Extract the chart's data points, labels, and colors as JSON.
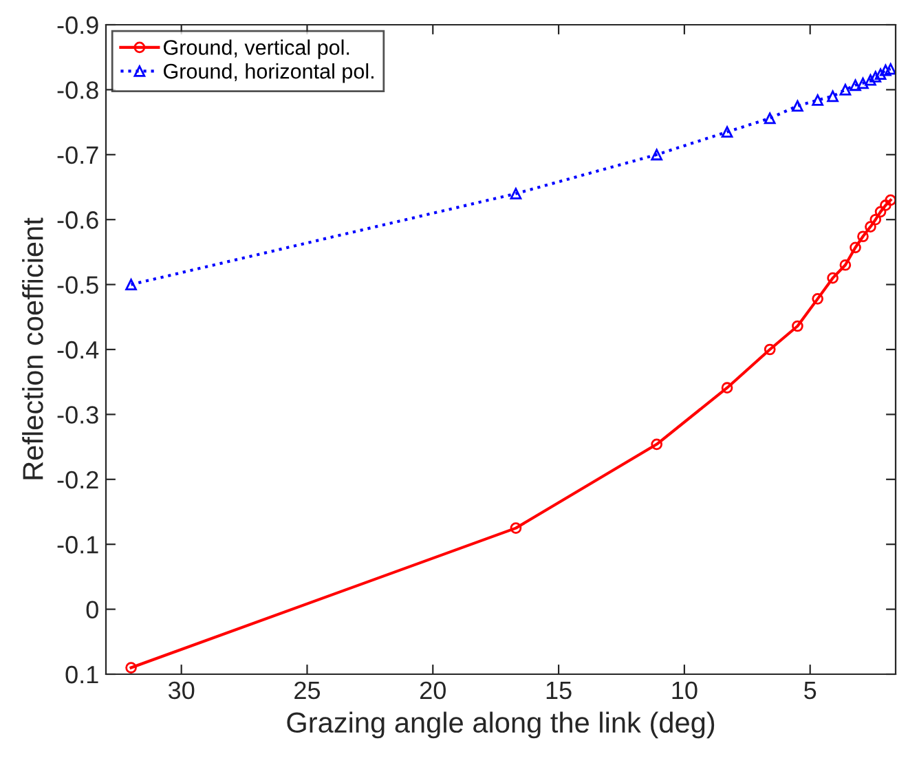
{
  "chart_data": {
    "type": "line",
    "xlabel": "Grazing angle along the link (deg)",
    "ylabel": "Reflection coefficient",
    "xlim": [
      33,
      1.6
    ],
    "xticks": [
      30,
      25,
      20,
      15,
      10,
      5
    ],
    "ylim": [
      0.1,
      -0.9
    ],
    "yticks": [
      0.1,
      0,
      -0.1,
      -0.2,
      -0.3,
      -0.4,
      -0.5,
      -0.6,
      -0.7,
      -0.8,
      -0.9
    ],
    "legend": "top left",
    "grid": false,
    "series": [
      {
        "name": "Ground, vertical pol.",
        "color": "#ff0000",
        "marker": "circle",
        "line_style": "solid",
        "x": [
          32.0,
          16.7,
          11.1,
          8.3,
          6.6,
          5.5,
          4.7,
          4.1,
          3.6,
          3.2,
          2.9,
          2.6,
          2.4,
          2.2,
          2.0,
          1.8
        ],
        "values": [
          0.09,
          -0.125,
          -0.254,
          -0.341,
          -0.4,
          -0.436,
          -0.478,
          -0.51,
          -0.53,
          -0.557,
          -0.574,
          -0.589,
          -0.6,
          -0.612,
          -0.622,
          -0.63
        ]
      },
      {
        "name": "Ground, horizontal pol.",
        "color": "#0000ff",
        "marker": "triangle",
        "line_style": "dotted",
        "x": [
          32.0,
          16.7,
          11.1,
          8.3,
          6.6,
          5.5,
          4.7,
          4.1,
          3.6,
          3.2,
          2.9,
          2.6,
          2.4,
          2.2,
          2.0,
          1.8
        ],
        "values": [
          -0.5,
          -0.64,
          -0.7,
          -0.735,
          -0.756,
          -0.775,
          -0.784,
          -0.79,
          -0.8,
          -0.807,
          -0.81,
          -0.815,
          -0.82,
          -0.824,
          -0.83,
          -0.832
        ]
      }
    ]
  }
}
